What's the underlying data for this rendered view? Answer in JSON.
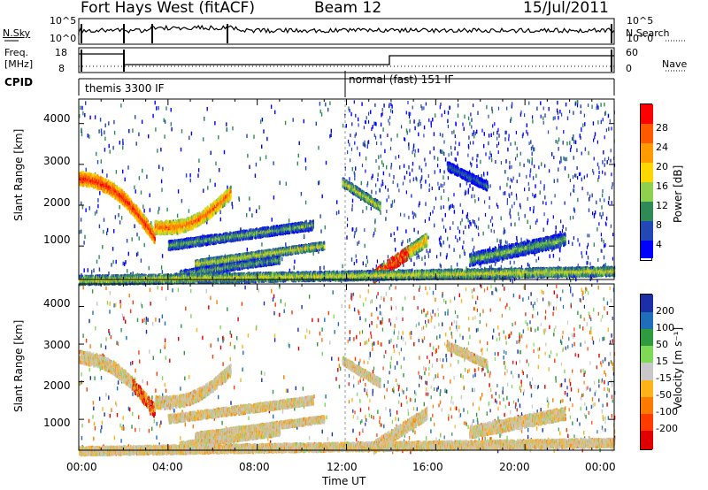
{
  "header": {
    "title": "Fort Hays West (fitACF)",
    "beam": "Beam 12",
    "date": "15/Jul/2011"
  },
  "panels": {
    "nsky_label": "N.Sky",
    "nsky_ticks": [
      "10^5",
      "10^0"
    ],
    "nsearch_label": "N.Search",
    "nsearch_ticks": [
      "10^5",
      "10^0"
    ],
    "freq_label": "Freq.",
    "freq_unit": "[MHz]",
    "freq_ticks": [
      "18",
      "8"
    ],
    "nave_label": "Nave",
    "nave_ticks": [
      "60",
      "0"
    ],
    "cpid_label": "CPID",
    "cpid_modes": [
      "themis 3300 IF",
      "normal (fast) 151 IF"
    ]
  },
  "chart_data": [
    {
      "type": "heatmap",
      "panel": "power",
      "ylabel": "Slant Range [km]",
      "ylim": [
        180,
        4600
      ],
      "yticks": [
        "4000",
        "3000",
        "2000",
        "1000"
      ],
      "xlim": [
        "00:00",
        "24:00"
      ],
      "colorbar": {
        "label": "Power [dB]",
        "ticks": [
          "28",
          "24",
          "20",
          "16",
          "12",
          "8",
          "4"
        ],
        "colors": [
          "#ff0000",
          "#ff5a00",
          "#ff9b00",
          "#ffd700",
          "#8fd14f",
          "#2e8b57",
          "#2347b5",
          "#0000ff"
        ]
      }
    },
    {
      "type": "heatmap",
      "panel": "velocity",
      "ylabel": "Slant Range [km]",
      "ylim": [
        180,
        4600
      ],
      "yticks": [
        "4000",
        "3000",
        "2000",
        "1000"
      ],
      "xlim": [
        "00:00",
        "24:00"
      ],
      "colorbar": {
        "label": "Velocity [m s⁻¹]",
        "ticks": [
          "200",
          "100",
          "50",
          "15",
          "-15",
          "-50",
          "-100",
          "-200"
        ],
        "colors": [
          "#1c2ea8",
          "#1e6fb8",
          "#2f9a3e",
          "#7ed957",
          "#c8c8c8",
          "#ffb31a",
          "#ff7a00",
          "#ff3b00",
          "#e00000"
        ]
      }
    }
  ],
  "xaxis": {
    "label": "Time UT",
    "ticks": [
      "00:00",
      "04:00",
      "08:00",
      "12:00",
      "16:00",
      "20:00",
      "00:00"
    ]
  }
}
